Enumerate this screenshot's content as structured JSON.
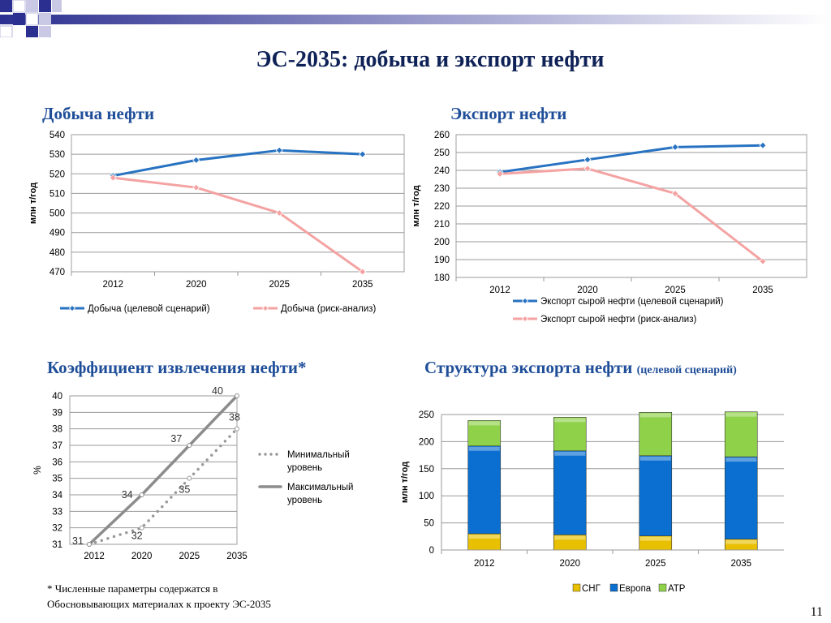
{
  "title": "ЭС-2035: добыча и экспорт нефти",
  "sections": {
    "production": "Добыча нефти",
    "export": "Экспорт нефти",
    "recovery": "Коэффициент извлечения нефти*",
    "structure": "Структура экспорта нефти",
    "structure_note": "(целевой сценарий)"
  },
  "footnote": [
    "* Численные параметры содержатся в",
    "Обосновывающих материалах к проекту ЭС-2035"
  ],
  "page_number": "11",
  "colors": {
    "blue": "#2772c1",
    "pink": "#f4a2a2",
    "gray_dark": "#8c8c8c",
    "gray_dots": "#999999",
    "cis": "#e8c000",
    "europe": "#0a6fd0",
    "apr": "#8fd24a",
    "title": "#0f2257",
    "heading": "#1f4e99"
  },
  "chart_data": [
    {
      "id": "production",
      "type": "line",
      "categories": [
        "2012",
        "2020",
        "2025",
        "2035"
      ],
      "ylabel": "млн т/год",
      "ylim": [
        470,
        540
      ],
      "yticks": [
        470,
        480,
        490,
        500,
        510,
        520,
        530,
        540
      ],
      "series": [
        {
          "name": "Добыча (целевой сценарий)",
          "color": "#2772c1",
          "values": [
            519,
            527,
            532,
            530
          ]
        },
        {
          "name": "Добыча (риск-анализ)",
          "color": "#f4a2a2",
          "values": [
            518,
            513,
            500,
            470
          ]
        }
      ],
      "legend": "bottom"
    },
    {
      "id": "export",
      "type": "line",
      "categories": [
        "2012",
        "2020",
        "2025",
        "2035"
      ],
      "ylabel": "млн т/год",
      "ylim": [
        180,
        260
      ],
      "yticks": [
        180,
        190,
        200,
        210,
        220,
        230,
        240,
        250,
        260
      ],
      "series": [
        {
          "name": "Экспорт сырой нефти (целевой сценарий)",
          "color": "#2772c1",
          "values": [
            239,
            246,
            253,
            254
          ]
        },
        {
          "name": "Экспорт сырой нефти (риск-анализ)",
          "color": "#f4a2a2",
          "values": [
            238,
            241,
            227,
            189
          ]
        }
      ],
      "legend": "bottom"
    },
    {
      "id": "recovery",
      "type": "line",
      "categories": [
        "2012",
        "2020",
        "2025",
        "2035"
      ],
      "ylabel": "%",
      "ylim": [
        31,
        40
      ],
      "yticks": [
        31,
        32,
        33,
        34,
        35,
        36,
        37,
        38,
        39,
        40
      ],
      "series": [
        {
          "name": "Минимальный уровень",
          "style": "dotted",
          "color": "#999999",
          "values": [
            31,
            32,
            35,
            38
          ],
          "labels": [
            "",
            "32",
            "35",
            "38"
          ]
        },
        {
          "name": "Максимальный уровень",
          "style": "solid",
          "color": "#8c8c8c",
          "values": [
            31,
            34,
            37,
            40
          ],
          "labels": [
            "31",
            "34",
            "37",
            "40"
          ]
        }
      ],
      "legend": "right"
    },
    {
      "id": "structure",
      "type": "bar",
      "stacked": true,
      "categories": [
        "2012",
        "2020",
        "2025",
        "2035"
      ],
      "ylabel": "млн т/год",
      "ylim": [
        0,
        250
      ],
      "yticks": [
        0,
        50,
        100,
        150,
        200,
        250
      ],
      "series": [
        {
          "name": "СНГ",
          "color": "#e8c000",
          "values": [
            30,
            28,
            26,
            20
          ]
        },
        {
          "name": "Европа",
          "color": "#0a6fd0",
          "values": [
            162,
            155,
            148,
            152
          ]
        },
        {
          "name": "АТР",
          "color": "#8fd24a",
          "values": [
            47,
            62,
            80,
            83
          ]
        }
      ],
      "legend": "bottom"
    }
  ]
}
